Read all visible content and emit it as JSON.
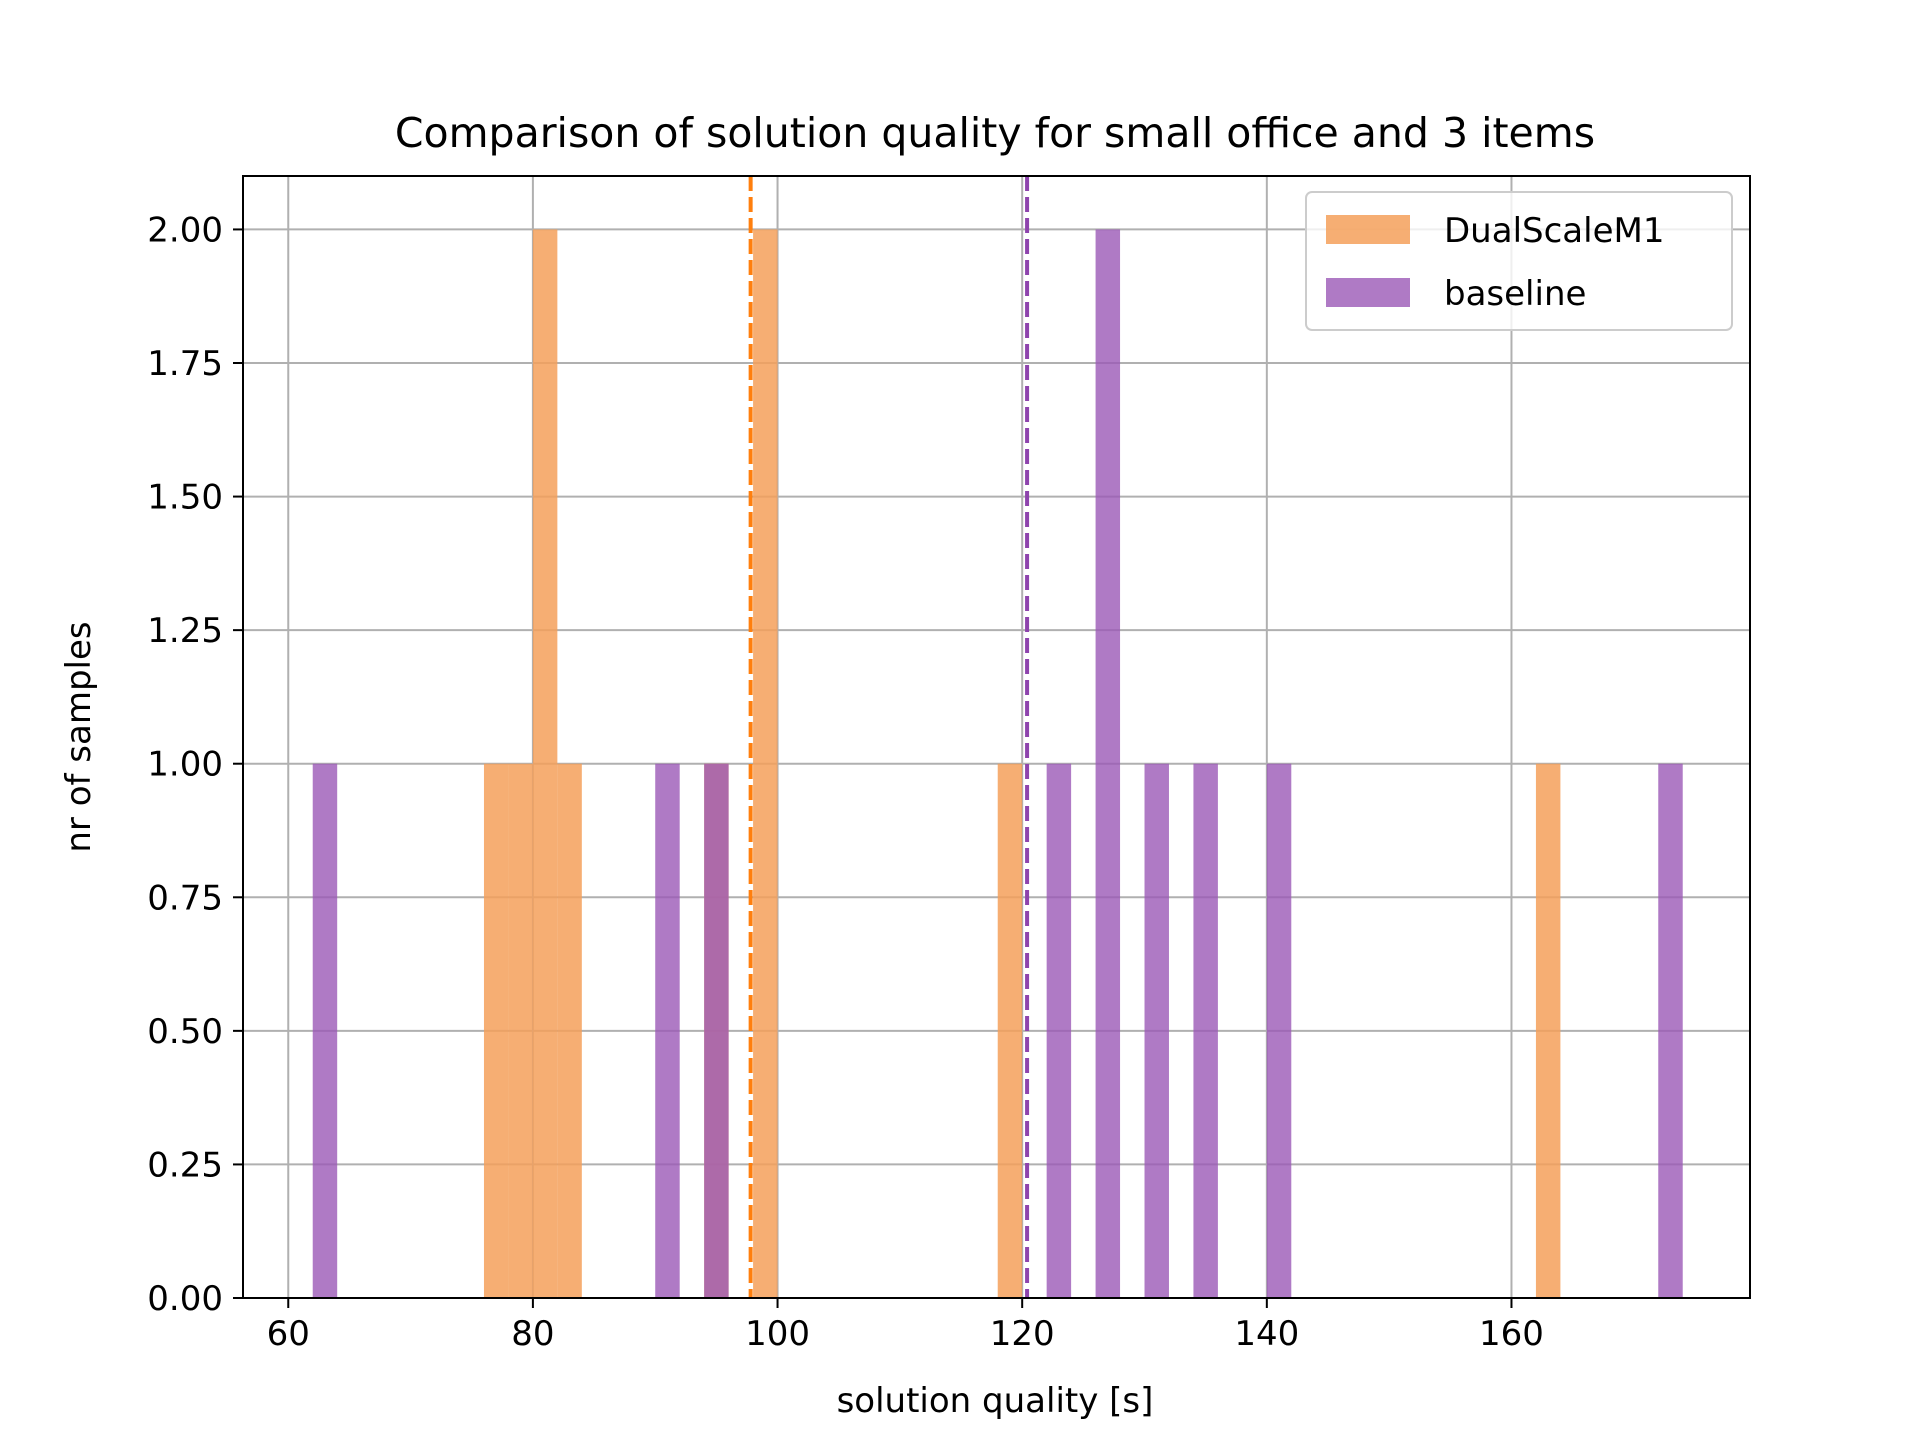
{
  "chart_data": {
    "type": "bar",
    "subtype": "histogram",
    "title": "Comparison of solution quality for small office and 3 items",
    "xlabel": "solution quality [s]",
    "ylabel": "nr of samples",
    "xlim": [
      56.3,
      179.5
    ],
    "ylim": [
      0,
      2.1
    ],
    "xticks": [
      60,
      80,
      100,
      120,
      140,
      160
    ],
    "yticks": [
      "0.00",
      "0.25",
      "0.50",
      "0.75",
      "1.00",
      "1.25",
      "1.50",
      "1.75",
      "2.00"
    ],
    "grid": true,
    "legend_position": "top-right",
    "bin_width": 2,
    "series": [
      {
        "name": "DualScaleM1",
        "color": "#f5a05a",
        "alpha": 0.85,
        "bins": [
          {
            "x0": 76,
            "count": 1
          },
          {
            "x0": 78,
            "count": 1
          },
          {
            "x0": 80,
            "count": 2
          },
          {
            "x0": 82,
            "count": 1
          },
          {
            "x0": 94,
            "count": 1
          },
          {
            "x0": 98,
            "count": 2
          },
          {
            "x0": 118,
            "count": 1
          },
          {
            "x0": 162,
            "count": 1
          }
        ],
        "mean": 97.8
      },
      {
        "name": "baseline",
        "color": "#9b59b6",
        "alpha": 0.8,
        "bins": [
          {
            "x0": 62,
            "count": 1
          },
          {
            "x0": 90,
            "count": 1
          },
          {
            "x0": 94,
            "count": 1
          },
          {
            "x0": 122,
            "count": 1
          },
          {
            "x0": 126,
            "count": 2
          },
          {
            "x0": 130,
            "count": 1
          },
          {
            "x0": 134,
            "count": 1
          },
          {
            "x0": 140,
            "count": 1
          },
          {
            "x0": 172,
            "count": 1
          }
        ],
        "mean": 120.4
      }
    ],
    "mean_lines": [
      {
        "series": "DualScaleM1",
        "x": 97.8,
        "color": "#ff7f0e",
        "style": "dashed"
      },
      {
        "series": "baseline",
        "x": 120.4,
        "color": "#8e44ad",
        "style": "dashed"
      }
    ]
  }
}
